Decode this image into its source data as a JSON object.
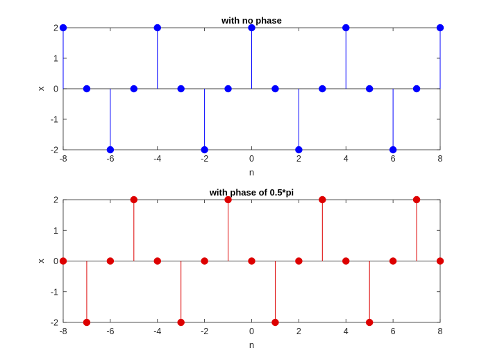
{
  "chart_data": [
    {
      "type": "stem",
      "title": "with no phase",
      "xlabel": "n",
      "ylabel": "x",
      "xlim": [
        -8,
        8
      ],
      "ylim": [
        -2,
        2
      ],
      "xticks": [
        "-8",
        "-6",
        "-4",
        "-2",
        "0",
        "2",
        "4",
        "6",
        "8"
      ],
      "yticks": [
        "-2",
        "-1",
        "0",
        "1",
        "2"
      ],
      "grid": false,
      "color": "#0000ff",
      "x": [
        -8,
        -7,
        -6,
        -5,
        -4,
        -3,
        -2,
        -1,
        0,
        1,
        2,
        3,
        4,
        5,
        6,
        7,
        8
      ],
      "values": [
        2,
        0,
        -2,
        0,
        2,
        0,
        -2,
        0,
        2,
        0,
        -2,
        0,
        2,
        0,
        -2,
        0,
        2
      ]
    },
    {
      "type": "stem",
      "title": "with phase of 0.5*pi",
      "xlabel": "n",
      "ylabel": "x",
      "xlim": [
        -8,
        8
      ],
      "ylim": [
        -2,
        2
      ],
      "xticks": [
        "-8",
        "-6",
        "-4",
        "-2",
        "0",
        "2",
        "4",
        "6",
        "8"
      ],
      "yticks": [
        "-2",
        "-1",
        "0",
        "1",
        "2"
      ],
      "grid": false,
      "color": "#dd0000",
      "x": [
        -8,
        -7,
        -6,
        -5,
        -4,
        -3,
        -2,
        -1,
        0,
        1,
        2,
        3,
        4,
        5,
        6,
        7,
        8
      ],
      "values": [
        0,
        -2,
        0,
        2,
        0,
        -2,
        0,
        2,
        0,
        -2,
        0,
        2,
        0,
        -2,
        0,
        2,
        0
      ]
    }
  ]
}
